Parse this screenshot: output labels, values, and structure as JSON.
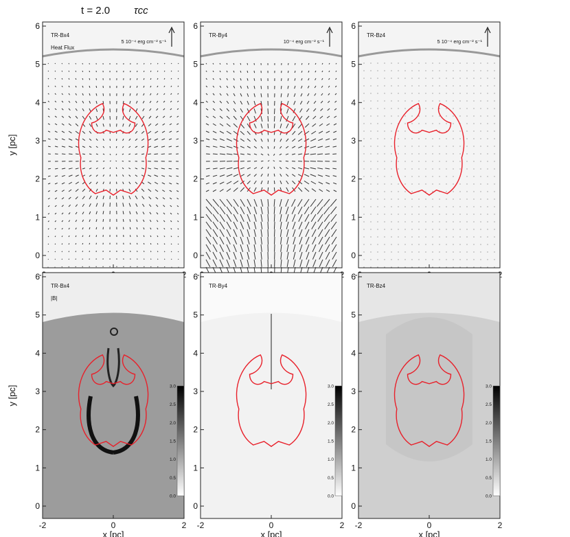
{
  "title": "t = 2.0",
  "title_symbol": "τcc",
  "axes": {
    "xlabel": "x [pc]",
    "ylabel": "y [pc]",
    "x_ticks": [
      "-2",
      "0",
      "2"
    ],
    "y_ticks": [
      "0",
      "1",
      "2",
      "3",
      "4",
      "5",
      "6"
    ]
  },
  "colorbar_ticks": [
    "0.0",
    "0.5",
    "1.0",
    "1.5",
    "2.0",
    "2.5",
    "3.0"
  ],
  "panels": [
    {
      "id": "tr-bx4-flux",
      "model": "TR-Bx4",
      "sublabel": "Heat Flux",
      "scale_label": "5 10⁻⁴ erg cm⁻² s⁻¹",
      "kind": "flux",
      "field": "bx"
    },
    {
      "id": "tr-by4-flux",
      "model": "TR-By4",
      "sublabel": "",
      "scale_label": "10⁻⁴ erg cm⁻² s⁻¹",
      "kind": "flux",
      "field": "by"
    },
    {
      "id": "tr-bz4-flux",
      "model": "TR-Bz4",
      "sublabel": "",
      "scale_label": "5 10⁻⁴ erg cm⁻² s⁻¹",
      "kind": "flux",
      "field": "bz"
    },
    {
      "id": "tr-bx4-b",
      "model": "TR-Bx4",
      "sublabel": "|B|",
      "scale_label": "",
      "kind": "field",
      "field": "bx"
    },
    {
      "id": "tr-by4-b",
      "model": "TR-By4",
      "sublabel": "",
      "scale_label": "",
      "kind": "field",
      "field": "by"
    },
    {
      "id": "tr-bz4-b",
      "model": "TR-Bz4",
      "sublabel": "",
      "scale_label": "",
      "kind": "field",
      "field": "bz"
    }
  ],
  "colors": {
    "contour": "#e8202a",
    "axis": "#111111"
  }
}
